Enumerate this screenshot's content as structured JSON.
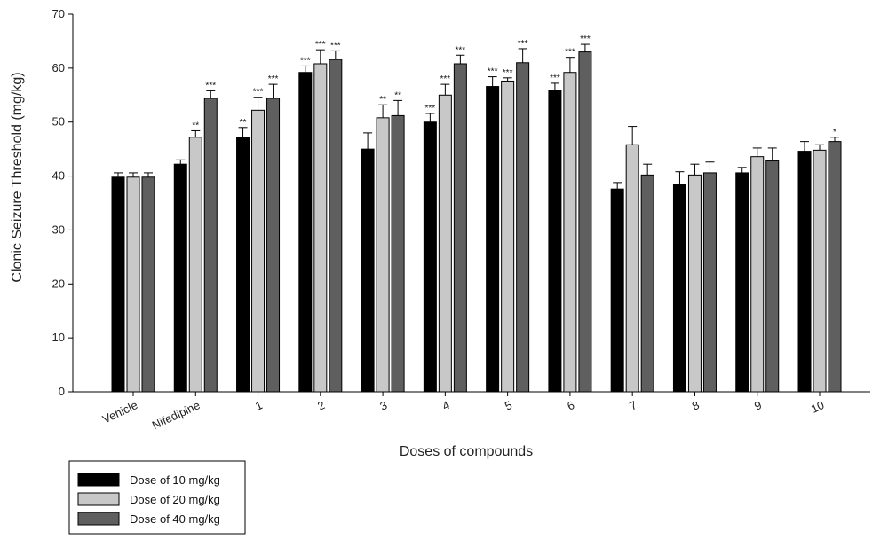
{
  "chart_data": {
    "type": "bar",
    "xlabel": "Doses of compounds",
    "ylabel": "Clonic Seizure Threshold (mg/kg)",
    "ylim": [
      0,
      70
    ],
    "yticks": [
      0,
      10,
      20,
      30,
      40,
      50,
      60,
      70
    ],
    "grid": false,
    "legend_position": "bottom-left",
    "categories": [
      "Vehicle",
      "Nifedipine",
      "1",
      "2",
      "3",
      "4",
      "5",
      "6",
      "7",
      "8",
      "9",
      "10"
    ],
    "series": [
      {
        "name": "Dose of 10 mg/kg",
        "color": "#000000",
        "values": [
          39.8,
          42.2,
          47.2,
          59.2,
          45.0,
          50.0,
          56.6,
          55.8,
          37.6,
          38.4,
          40.6,
          44.6
        ],
        "errors": [
          0.8,
          0.8,
          1.8,
          1.2,
          3.0,
          1.6,
          1.8,
          1.4,
          1.2,
          2.4,
          1.0,
          1.8
        ],
        "significance": [
          "",
          "",
          "**",
          "***",
          "",
          "***",
          "***",
          "***",
          "",
          "",
          "",
          ""
        ]
      },
      {
        "name": "Dose of 20 mg/kg",
        "color": "#c8c8c8",
        "values": [
          39.8,
          47.2,
          52.2,
          60.8,
          50.8,
          55.0,
          57.6,
          59.2,
          45.8,
          40.2,
          43.6,
          44.8
        ],
        "errors": [
          0.8,
          1.2,
          2.4,
          2.6,
          2.4,
          2.0,
          0.6,
          2.8,
          3.4,
          2.0,
          1.6,
          1.0
        ],
        "significance": [
          "",
          "**",
          "***",
          "***",
          "**",
          "***",
          "***",
          "***",
          "",
          "",
          "",
          ""
        ]
      },
      {
        "name": "Dose of 40 mg/kg",
        "color": "#5f5f5f",
        "values": [
          39.8,
          54.4,
          54.4,
          61.6,
          51.2,
          60.8,
          61.0,
          63.0,
          40.2,
          40.6,
          42.8,
          46.4
        ],
        "errors": [
          0.8,
          1.4,
          2.6,
          1.6,
          2.8,
          1.6,
          2.6,
          1.4,
          2.0,
          2.0,
          2.4,
          0.8
        ],
        "significance": [
          "",
          "***",
          "***",
          "***",
          "**",
          "***",
          "***",
          "***",
          "",
          "",
          "",
          "*"
        ]
      }
    ]
  }
}
